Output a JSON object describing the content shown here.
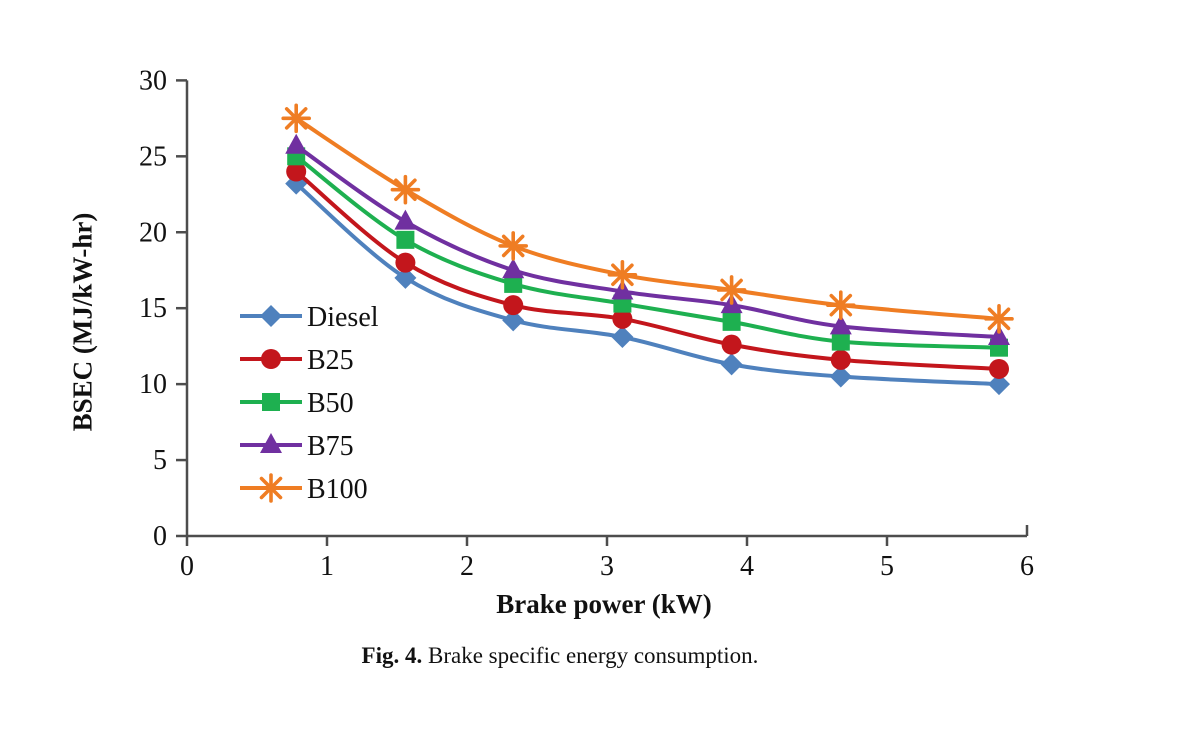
{
  "caption": {
    "label": "Fig. 4.",
    "text": " Brake specific energy consumption."
  },
  "chart_data": {
    "type": "line",
    "title": "",
    "xlabel": "Brake power (kW)",
    "ylabel": "BSEC (MJ/kW-hr)",
    "xlim": [
      0,
      6
    ],
    "ylim": [
      0,
      30
    ],
    "xticks": [
      0,
      1,
      2,
      3,
      4,
      5,
      6
    ],
    "yticks": [
      0,
      5,
      10,
      15,
      20,
      25,
      30
    ],
    "grid": false,
    "legend_position": "inside-left",
    "axis_color": "#4d4d4d",
    "text_color": "#111111",
    "x": [
      0.78,
      1.56,
      2.33,
      3.11,
      3.89,
      4.67,
      5.8
    ],
    "series": [
      {
        "name": "Diesel",
        "marker": "diamond",
        "color": "#4F81BD",
        "values": [
          23.2,
          17.0,
          14.2,
          13.1,
          11.3,
          10.5,
          10.0
        ]
      },
      {
        "name": "B25",
        "marker": "circle",
        "color": "#C3161C",
        "values": [
          24.0,
          18.0,
          15.2,
          14.3,
          12.6,
          11.6,
          11.0
        ]
      },
      {
        "name": "B50",
        "marker": "square",
        "color": "#1EB050",
        "values": [
          25.0,
          19.5,
          16.6,
          15.3,
          14.1,
          12.8,
          12.4
        ]
      },
      {
        "name": "B75",
        "marker": "triangle",
        "color": "#7030A0",
        "values": [
          25.7,
          20.7,
          17.5,
          16.1,
          15.2,
          13.8,
          13.1
        ]
      },
      {
        "name": "B100",
        "marker": "star",
        "color": "#EF7D23",
        "values": [
          27.5,
          22.8,
          19.1,
          17.2,
          16.2,
          15.2,
          14.3
        ]
      }
    ]
  }
}
